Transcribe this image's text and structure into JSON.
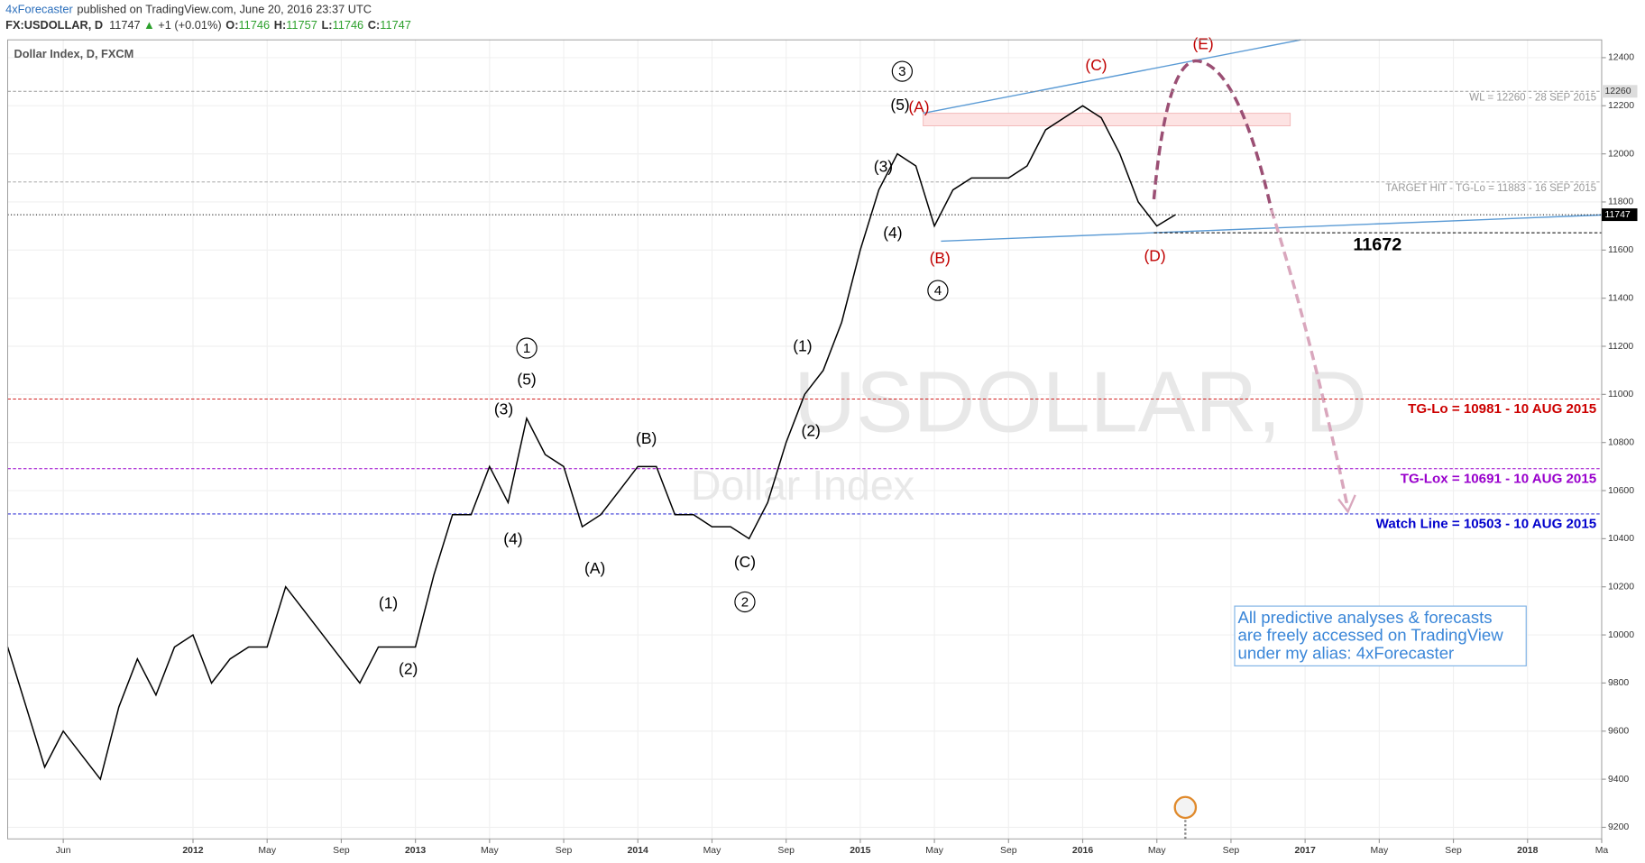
{
  "chart_data": {
    "type": "line",
    "publisher": "4xForecaster",
    "published": "published on TradingView.com, June 20, 2016 23:37 UTC",
    "symbol": "FX:USDOLLAR, D",
    "last": 11747,
    "change": "+1 (+0.01%)",
    "ohlc": [
      {
        "label": "O:",
        "value": 11746
      },
      {
        "label": "H:",
        "value": 11757
      },
      {
        "label": "L:",
        "value": 11746
      },
      {
        "label": "C:",
        "value": 11747
      }
    ],
    "title": "Dollar Index, D, FXCM",
    "watermark": "USDOLLAR, D",
    "watermark_sub": "Dollar Index",
    "color": "#000000",
    "x": [
      "2011-03",
      "2011-04",
      "2011-05",
      "2011-06",
      "2011-07",
      "2011-08",
      "2011-09",
      "2011-10",
      "2011-11",
      "2011-12",
      "2012-01",
      "2012-02",
      "2012-03",
      "2012-04",
      "2012-05",
      "2012-06",
      "2012-07",
      "2012-08",
      "2012-09",
      "2012-10",
      "2012-11",
      "2012-12",
      "2013-01",
      "2013-02",
      "2013-03",
      "2013-04",
      "2013-05",
      "2013-06",
      "2013-07",
      "2013-08",
      "2013-09",
      "2013-10",
      "2013-11",
      "2013-12",
      "2014-01",
      "2014-02",
      "2014-03",
      "2014-04",
      "2014-05",
      "2014-06",
      "2014-07",
      "2014-08",
      "2014-09",
      "2014-10",
      "2014-11",
      "2014-12",
      "2015-01",
      "2015-02",
      "2015-03",
      "2015-04",
      "2015-05",
      "2015-06",
      "2015-07",
      "2015-08",
      "2015-09",
      "2015-10",
      "2015-11",
      "2015-12",
      "2016-01",
      "2016-02",
      "2016-03",
      "2016-04",
      "2016-05",
      "2016-06"
    ],
    "values": [
      9950,
      9700,
      9450,
      9600,
      9500,
      9400,
      9700,
      9900,
      9750,
      9950,
      10000,
      9800,
      9900,
      9950,
      9950,
      10200,
      10100,
      10000,
      9900,
      9800,
      9950,
      9950,
      9950,
      10250,
      10500,
      10500,
      10700,
      10550,
      10900,
      10750,
      10700,
      10450,
      10500,
      10600,
      10700,
      10700,
      10500,
      10500,
      10450,
      10450,
      10400,
      10550,
      10800,
      11000,
      11100,
      11300,
      11600,
      11850,
      12000,
      11950,
      11700,
      11850,
      11900,
      11900,
      11900,
      11950,
      12100,
      12150,
      12200,
      12150,
      12000,
      11800,
      11700,
      11747
    ],
    "xlim": [
      "2011-03",
      "2018-05"
    ],
    "xticks": [
      {
        "value": "2011-06",
        "label": "Jun"
      },
      {
        "value": "2012-01",
        "label": "2012"
      },
      {
        "value": "2012-05",
        "label": "May"
      },
      {
        "value": "2012-09",
        "label": "Sep"
      },
      {
        "value": "2013-01",
        "label": "2013"
      },
      {
        "value": "2013-05",
        "label": "May"
      },
      {
        "value": "2013-09",
        "label": "Sep"
      },
      {
        "value": "2014-01",
        "label": "2014"
      },
      {
        "value": "2014-05",
        "label": "May"
      },
      {
        "value": "2014-09",
        "label": "Sep"
      },
      {
        "value": "2015-01",
        "label": "2015"
      },
      {
        "value": "2015-05",
        "label": "May"
      },
      {
        "value": "2015-09",
        "label": "Sep"
      },
      {
        "value": "2016-01",
        "label": "2016"
      },
      {
        "value": "2016-05",
        "label": "May"
      },
      {
        "value": "2016-09",
        "label": "Sep"
      },
      {
        "value": "2017-01",
        "label": "2017"
      },
      {
        "value": "2017-05",
        "label": "May"
      },
      {
        "value": "2017-09",
        "label": "Sep"
      },
      {
        "value": "2018-01",
        "label": "2018"
      },
      {
        "value": "2018-05",
        "label": "Ma"
      }
    ],
    "ylim": [
      9152,
      12474
    ],
    "yticks": [
      9200,
      9400,
      9600,
      9800,
      10000,
      10200,
      10400,
      10600,
      10800,
      11000,
      11200,
      11400,
      11600,
      11800,
      12000,
      12200,
      12400
    ],
    "grid": true,
    "levels": [
      {
        "value": 12260,
        "label": "WL = 12260 - 28 SEP 2015",
        "color": "#999999"
      },
      {
        "value": 11883,
        "label": "TARGET HIT - TG-Lo = 11883 - 16 SEP 2015",
        "color": "#999999"
      },
      {
        "value": 11747,
        "color": "#000000"
      },
      {
        "value": 11672,
        "color": "#000000"
      },
      {
        "value": 10981,
        "label": "TG-Lo = 10981 - 10 AUG 2015",
        "color": "#cc0000"
      },
      {
        "value": 10691,
        "label": "TG-Lox = 10691 - 10 AUG 2015",
        "color": "#9900cc"
      },
      {
        "value": 10503,
        "label": "Watch Line = 10503 - 10 AUG 2015",
        "color": "#0000cc"
      }
    ],
    "annotations": [
      "3",
      "(5)",
      "(A)",
      "(C)",
      "(E)",
      "(3)",
      "(4)",
      "(B)",
      "4",
      "(D)",
      "1",
      "(5)",
      "(3)",
      "(4)",
      "(B)",
      "(A)",
      "(C)",
      "2",
      "(1)",
      "(2)",
      "(1)",
      "(2)"
    ],
    "note": [
      "All predictive analyses & forecasts",
      "are freely accessed on TradingView",
      "under my alias: 4xForecaster"
    ]
  }
}
